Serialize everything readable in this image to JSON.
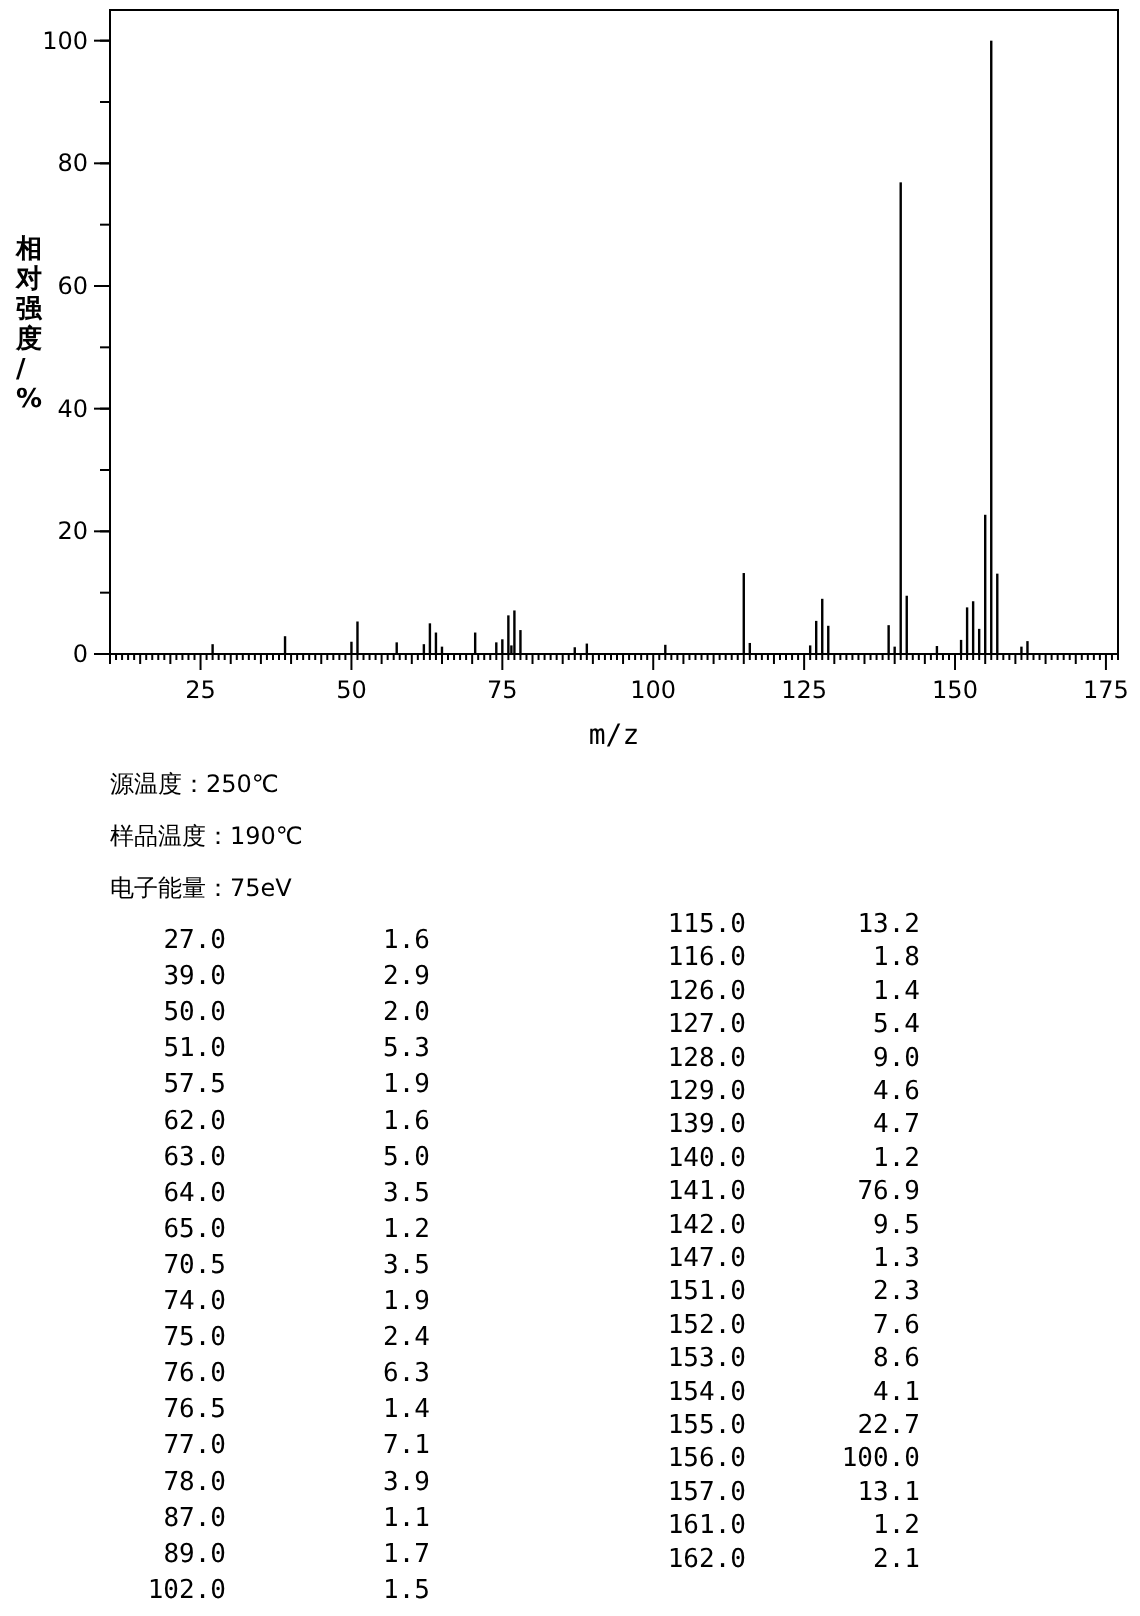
{
  "chart_data": [
    {
      "type": "bar",
      "xlabel": "m/z",
      "ylabel": "相对强度/%",
      "color": "#000000",
      "grid": false,
      "xlim": [
        10,
        177
      ],
      "ylim": [
        0,
        105
      ],
      "xticks": [
        25,
        50,
        75,
        100,
        125,
        150,
        175
      ],
      "yticks": [
        0,
        20,
        40,
        60,
        80,
        100
      ],
      "x": [
        27,
        39,
        50,
        51,
        57.5,
        62,
        63,
        64,
        65,
        70.5,
        74,
        75,
        76,
        76.5,
        77,
        78,
        87,
        89,
        102,
        115,
        116,
        126,
        127,
        128,
        129,
        139,
        140,
        141,
        142,
        147,
        151,
        152,
        153,
        154,
        155,
        156,
        157,
        161,
        162
      ],
      "values": [
        1.6,
        2.9,
        2.0,
        5.3,
        1.9,
        1.6,
        5.0,
        3.5,
        1.2,
        3.5,
        1.9,
        2.4,
        6.3,
        1.4,
        7.1,
        3.9,
        1.1,
        1.7,
        1.5,
        13.2,
        1.8,
        1.4,
        5.4,
        9.0,
        4.6,
        4.7,
        1.2,
        76.9,
        9.5,
        1.3,
        2.3,
        7.6,
        8.6,
        4.1,
        22.7,
        100.0,
        13.1,
        1.2,
        2.1
      ]
    },
    {
      "type": "other",
      "annotations": [
        "源温度：250℃",
        "样品温度：190℃",
        "电子能量：75eV",
        "27.0",
        "1.6",
        "39.0",
        "2.9",
        "50.0",
        "2.0",
        "51.0",
        "5.3",
        "57.5",
        "1.9",
        "62.0",
        "1.6",
        "63.0",
        "5.0",
        "64.0",
        "3.5",
        "65.0",
        "1.2",
        "70.5",
        "3.5",
        "74.0",
        "1.9",
        "75.0",
        "2.4",
        "76.0",
        "6.3",
        "76.5",
        "1.4",
        "77.0",
        "7.1",
        "78.0",
        "3.9",
        "87.0",
        "1.1",
        "89.0",
        "1.7",
        "102.0",
        "1.5",
        "115.0",
        "13.2",
        "116.0",
        "1.8",
        "126.0",
        "1.4",
        "127.0",
        "5.4",
        "128.0",
        "9.0",
        "129.0",
        "4.6",
        "139.0",
        "4.7",
        "140.0",
        "1.2",
        "141.0",
        "76.9",
        "142.0",
        "9.5",
        "147.0",
        "1.3",
        "151.0",
        "2.3",
        "152.0",
        "7.6",
        "153.0",
        "8.6",
        "154.0",
        "4.1",
        "155.0",
        "22.7",
        "156.0",
        "100.0",
        "157.0",
        "13.1",
        "161.0",
        "1.2",
        "162.0",
        "2.1"
      ]
    }
  ]
}
